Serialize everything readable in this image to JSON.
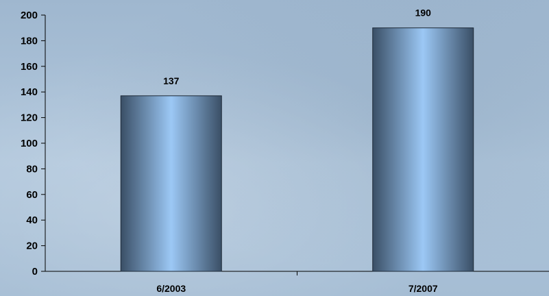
{
  "chart_data": {
    "type": "bar",
    "categories": [
      "6/2003",
      "7/2007"
    ],
    "values": [
      137,
      190
    ],
    "data_labels": [
      "137",
      "190"
    ],
    "ylim": [
      0,
      200
    ],
    "y_ticks": [
      0,
      20,
      40,
      60,
      80,
      100,
      120,
      140,
      160,
      180,
      200
    ],
    "title": "",
    "xlabel": "",
    "ylabel": "",
    "grid": false,
    "legend": "none",
    "bar_gradient": {
      "edge": "#3a4f66",
      "center": "#9cc8f5"
    },
    "background": "#a7bfd6",
    "axis_color": "#000000"
  }
}
